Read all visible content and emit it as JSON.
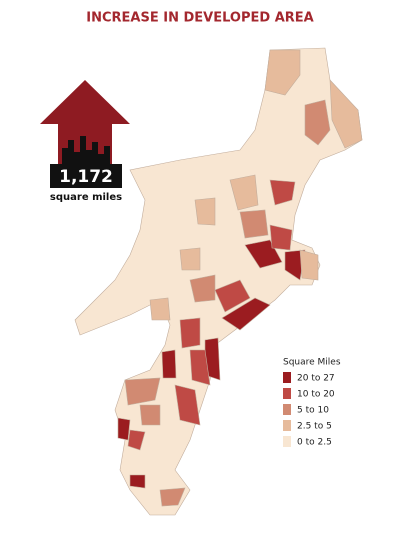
{
  "header": {
    "title": "INCREASE IN DEVELOPED AREA"
  },
  "callout": {
    "value": "1,172",
    "unit": "square miles"
  },
  "legend": {
    "title": "Square Miles",
    "items": [
      {
        "label": "20 to 27",
        "color": "#9b1c20"
      },
      {
        "label": "10 to 20",
        "color": "#bf4a45"
      },
      {
        "label": "5 to 10",
        "color": "#d18a72"
      },
      {
        "label": "2.5 to 5",
        "color": "#e6bb9c"
      },
      {
        "label": "0 to 2.5",
        "color": "#f8e6d2"
      }
    ]
  }
}
